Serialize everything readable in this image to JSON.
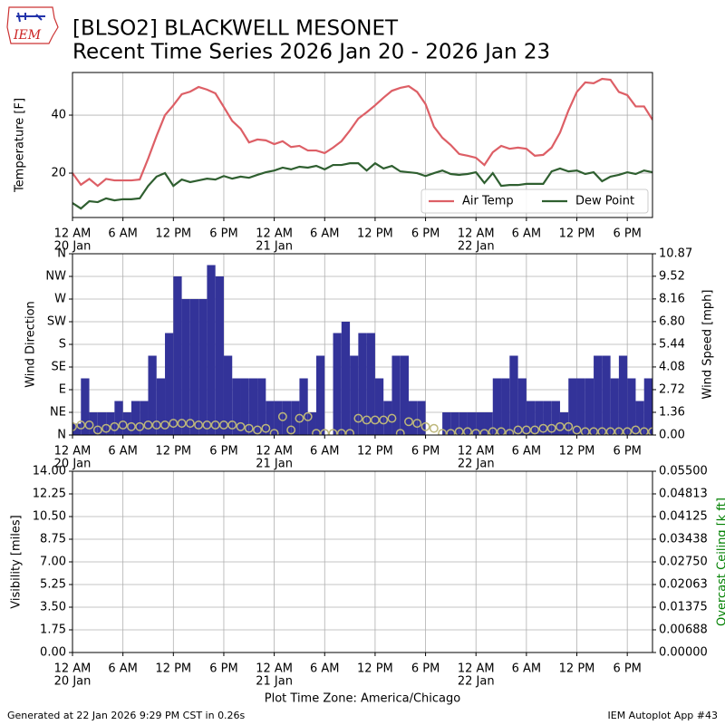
{
  "logo_text": "IEM",
  "title": "[BLSO2] BLACKWELL MESONET",
  "subtitle": "Recent Time Series 2026 Jan 20 - 2026 Jan 23",
  "x_label": "Plot Time Zone: America/Chicago",
  "footer_left": "Generated at 22 Jan 2026 9:29 PM CST in 0.26s",
  "footer_right": "IEM Autoplot App #43",
  "chart_data": [
    {
      "type": "line",
      "ylabel": "Temperature [F]",
      "xlim": [
        0,
        69
      ],
      "ylim": [
        4.7,
        54.7
      ],
      "xticks": [
        {
          "value": 0,
          "label": "12 AM"
        },
        {
          "value": 6,
          "label": "6 AM"
        },
        {
          "value": 12,
          "label": "12 PM"
        },
        {
          "value": 18,
          "label": "6 PM"
        },
        {
          "value": 24,
          "label": "12 AM"
        },
        {
          "value": 30,
          "label": "6 AM"
        },
        {
          "value": 36,
          "label": "12 PM"
        },
        {
          "value": 42,
          "label": "6 PM"
        },
        {
          "value": 48,
          "label": "12 AM"
        },
        {
          "value": 54,
          "label": "6 AM"
        },
        {
          "value": 60,
          "label": "12 PM"
        },
        {
          "value": 66,
          "label": "6 PM"
        }
      ],
      "xtick_dates": [
        {
          "value": 0,
          "label": "20 Jan"
        },
        {
          "value": 24,
          "label": "21 Jan"
        },
        {
          "value": 48,
          "label": "22 Jan"
        }
      ],
      "yticks": [
        20,
        40
      ],
      "grid": true,
      "legend": "lower right",
      "x": [
        0,
        1,
        2,
        3,
        4,
        5,
        6,
        7,
        8,
        9,
        10,
        11,
        12,
        13,
        14,
        15,
        16,
        17,
        18,
        19,
        20,
        21,
        22,
        23,
        24,
        25,
        26,
        27,
        28,
        29,
        30,
        31,
        32,
        33,
        34,
        35,
        36,
        37,
        38,
        39,
        40,
        41,
        42,
        43,
        44,
        45,
        46,
        47,
        48,
        49,
        50,
        51,
        52,
        53,
        54,
        55,
        56,
        57,
        58,
        59,
        60,
        61,
        62,
        63,
        64,
        65,
        66,
        67,
        68,
        69
      ],
      "series": [
        {
          "name": "Air Temp",
          "color": "#dd5f66",
          "type": "line",
          "values": [
            20,
            16,
            18,
            15.6,
            18,
            17.5,
            17.5,
            17.5,
            17.8,
            25,
            32.8,
            40,
            43.4,
            47.2,
            48.1,
            49.7,
            48.8,
            47.5,
            42.8,
            38,
            35.3,
            30.6,
            31.6,
            31.3,
            30,
            31,
            29,
            29.4,
            27.8,
            27.8,
            26.9,
            28.8,
            31,
            34.7,
            38.8,
            41,
            43.4,
            46,
            48.4,
            49.4,
            50,
            48,
            43.8,
            36,
            32.2,
            29.7,
            26.6,
            26,
            25.3,
            22.8,
            27.2,
            29.4,
            28.4,
            28.8,
            28.4,
            26,
            26.3,
            28.8,
            34,
            41.6,
            48,
            51.3,
            51,
            52.5,
            52.2,
            48,
            46.9,
            43,
            43,
            38.4
          ]
        },
        {
          "name": "Dew Point",
          "color": "#2f5f30",
          "type": "line",
          "values": [
            9.7,
            7.8,
            10.3,
            10,
            11.3,
            10.6,
            11,
            11,
            11.3,
            15.6,
            18.8,
            20,
            15.6,
            17.8,
            16.9,
            17.5,
            18.1,
            17.8,
            19,
            18.1,
            18.8,
            18.4,
            19.4,
            20.3,
            20.9,
            21.9,
            21.3,
            22.2,
            21.9,
            22.5,
            21.3,
            22.8,
            22.8,
            23.4,
            23.4,
            20.9,
            23.4,
            21.6,
            22.5,
            20.6,
            20.3,
            20,
            19,
            20,
            20.9,
            19.7,
            19.4,
            19.7,
            20.3,
            16.6,
            20,
            15.6,
            15.9,
            15.9,
            16.3,
            16.3,
            16.3,
            20.6,
            21.6,
            20.6,
            20.9,
            19.7,
            20.3,
            17.2,
            18.8,
            19.4,
            20.3,
            19.7,
            20.9,
            20.3
          ]
        }
      ]
    },
    {
      "type": "bar",
      "ylabel": "Wind Direction",
      "y2label": "Wind Speed [mph]",
      "xlim": [
        0,
        69
      ],
      "ylim": [
        0,
        360
      ],
      "y2lim": [
        0,
        10.87
      ],
      "xticks": [
        {
          "value": 0,
          "label": "12 AM"
        },
        {
          "value": 6,
          "label": "6 AM"
        },
        {
          "value": 12,
          "label": "12 PM"
        },
        {
          "value": 18,
          "label": "6 PM"
        },
        {
          "value": 24,
          "label": "12 AM"
        },
        {
          "value": 30,
          "label": "6 AM"
        },
        {
          "value": 36,
          "label": "12 PM"
        },
        {
          "value": 42,
          "label": "6 PM"
        },
        {
          "value": 48,
          "label": "12 AM"
        },
        {
          "value": 54,
          "label": "6 AM"
        },
        {
          "value": 60,
          "label": "12 PM"
        },
        {
          "value": 66,
          "label": "6 PM"
        }
      ],
      "xtick_dates": [
        {
          "value": 0,
          "label": "20 Jan"
        },
        {
          "value": 24,
          "label": "21 Jan"
        },
        {
          "value": 48,
          "label": "22 Jan"
        }
      ],
      "yticks": [
        {
          "value": 0,
          "label": "N"
        },
        {
          "value": 45,
          "label": "NE"
        },
        {
          "value": 90,
          "label": "E"
        },
        {
          "value": 135,
          "label": "SE"
        },
        {
          "value": 180,
          "label": "S"
        },
        {
          "value": 225,
          "label": "SW"
        },
        {
          "value": 270,
          "label": "W"
        },
        {
          "value": 315,
          "label": "NW"
        },
        {
          "value": 360,
          "label": "N"
        }
      ],
      "y2ticks": [
        {
          "value": 0,
          "label": "0.00"
        },
        1.36,
        2.72,
        4.08,
        5.44,
        {
          "value": 6.8,
          "label": "6.80"
        },
        8.16,
        9.52,
        10.87
      ],
      "grid": true,
      "x": [
        0,
        1,
        2,
        3,
        4,
        5,
        6,
        7,
        8,
        9,
        10,
        11,
        12,
        13,
        14,
        15,
        16,
        17,
        18,
        19,
        20,
        21,
        22,
        23,
        24,
        25,
        26,
        27,
        28,
        29,
        30,
        31,
        32,
        33,
        34,
        35,
        36,
        37,
        38,
        39,
        40,
        41,
        42,
        43,
        44,
        45,
        46,
        47,
        48,
        49,
        50,
        51,
        52,
        53,
        54,
        55,
        56,
        57,
        58,
        59,
        60,
        61,
        62,
        63,
        64,
        65,
        66,
        67,
        68,
        69
      ],
      "series": [
        {
          "color": "#333399",
          "type": "bar",
          "values": [
            22.5,
            112.5,
            45,
            45,
            45,
            67.5,
            45,
            67.5,
            67.5,
            157.5,
            112.5,
            202.5,
            315,
            270,
            270,
            270,
            337.5,
            315,
            157.5,
            112.5,
            112.5,
            112.5,
            112.5,
            67.5,
            67.5,
            67.5,
            67.5,
            112.5,
            45,
            157.5,
            0,
            202.5,
            225,
            157.5,
            202.5,
            202.5,
            112.5,
            67.5,
            157.5,
            157.5,
            67.5,
            67.5,
            0,
            0,
            45,
            45,
            45,
            45,
            45,
            45,
            112.5,
            112.5,
            157.5,
            112.5,
            67.5,
            67.5,
            67.5,
            67.5,
            45,
            112.5,
            112.5,
            112.5,
            157.5,
            157.5,
            112.5,
            157.5,
            112.5,
            67.5,
            112.5,
            112.5
          ]
        },
        {
          "color": "#bdb77a",
          "type": "scatter",
          "axis": "y2",
          "values": [
            0.5,
            0.6,
            0.6,
            0.3,
            0.4,
            0.5,
            0.6,
            0.5,
            0.5,
            0.6,
            0.6,
            0.6,
            0.7,
            0.7,
            0.7,
            0.6,
            0.6,
            0.6,
            0.6,
            0.6,
            0.5,
            0.4,
            0.3,
            0.4,
            0.1,
            1.1,
            0.3,
            1,
            1.1,
            0.1,
            0.1,
            0.1,
            0.1,
            0.1,
            1,
            0.9,
            0.9,
            0.9,
            1,
            0.1,
            0.8,
            0.7,
            0.5,
            0.4,
            0.1,
            0.1,
            0.2,
            0.2,
            0.1,
            0.1,
            0.2,
            0.2,
            0.1,
            0.3,
            0.3,
            0.3,
            0.4,
            0.4,
            0.5,
            0.5,
            0.3,
            0.2,
            0.2,
            0.2,
            0.2,
            0.2,
            0.2,
            0.3,
            0.2,
            0.2
          ]
        }
      ]
    },
    {
      "type": "line",
      "ylabel": "Visibility [miles]",
      "y2label": "Overcast Ceiling [k ft]",
      "y2label_color": "#008000",
      "xlim": [
        0,
        69
      ],
      "ylim": [
        0,
        14
      ],
      "y2lim": [
        0,
        0.055
      ],
      "xticks": [
        {
          "value": 0,
          "label": "12 AM"
        },
        {
          "value": 6,
          "label": "6 AM"
        },
        {
          "value": 12,
          "label": "12 PM"
        },
        {
          "value": 18,
          "label": "6 PM"
        },
        {
          "value": 24,
          "label": "12 AM"
        },
        {
          "value": 30,
          "label": "6 AM"
        },
        {
          "value": 36,
          "label": "12 PM"
        },
        {
          "value": 42,
          "label": "6 PM"
        },
        {
          "value": 48,
          "label": "12 AM"
        },
        {
          "value": 54,
          "label": "6 AM"
        },
        {
          "value": 60,
          "label": "12 PM"
        },
        {
          "value": 66,
          "label": "6 PM"
        }
      ],
      "xtick_dates": [
        {
          "value": 0,
          "label": "20 Jan"
        },
        {
          "value": 24,
          "label": "21 Jan"
        },
        {
          "value": 48,
          "label": "22 Jan"
        }
      ],
      "yticks": [
        {
          "value": 0,
          "label": "0.00"
        },
        {
          "value": 1.75,
          "label": "1.75"
        },
        {
          "value": 3.5,
          "label": "3.50"
        },
        {
          "value": 5.25,
          "label": "5.25"
        },
        {
          "value": 7,
          "label": "7.00"
        },
        {
          "value": 8.75,
          "label": "8.75"
        },
        {
          "value": 10.5,
          "label": "10.50"
        },
        {
          "value": 12.25,
          "label": "12.25"
        },
        {
          "value": 14,
          "label": "14.00"
        }
      ],
      "y2ticks": [
        {
          "value": 0,
          "label": "0.00000"
        },
        {
          "value": 0.00688,
          "label": "0.00688"
        },
        {
          "value": 0.01375,
          "label": "0.01375"
        },
        {
          "value": 0.02063,
          "label": "0.02063"
        },
        {
          "value": 0.0275,
          "label": "0.02750"
        },
        {
          "value": 0.03438,
          "label": "0.03438"
        },
        {
          "value": 0.04125,
          "label": "0.04125"
        },
        {
          "value": 0.04813,
          "label": "0.04813"
        },
        {
          "value": 0.055,
          "label": "0.05500"
        }
      ],
      "grid": true,
      "series": []
    }
  ]
}
